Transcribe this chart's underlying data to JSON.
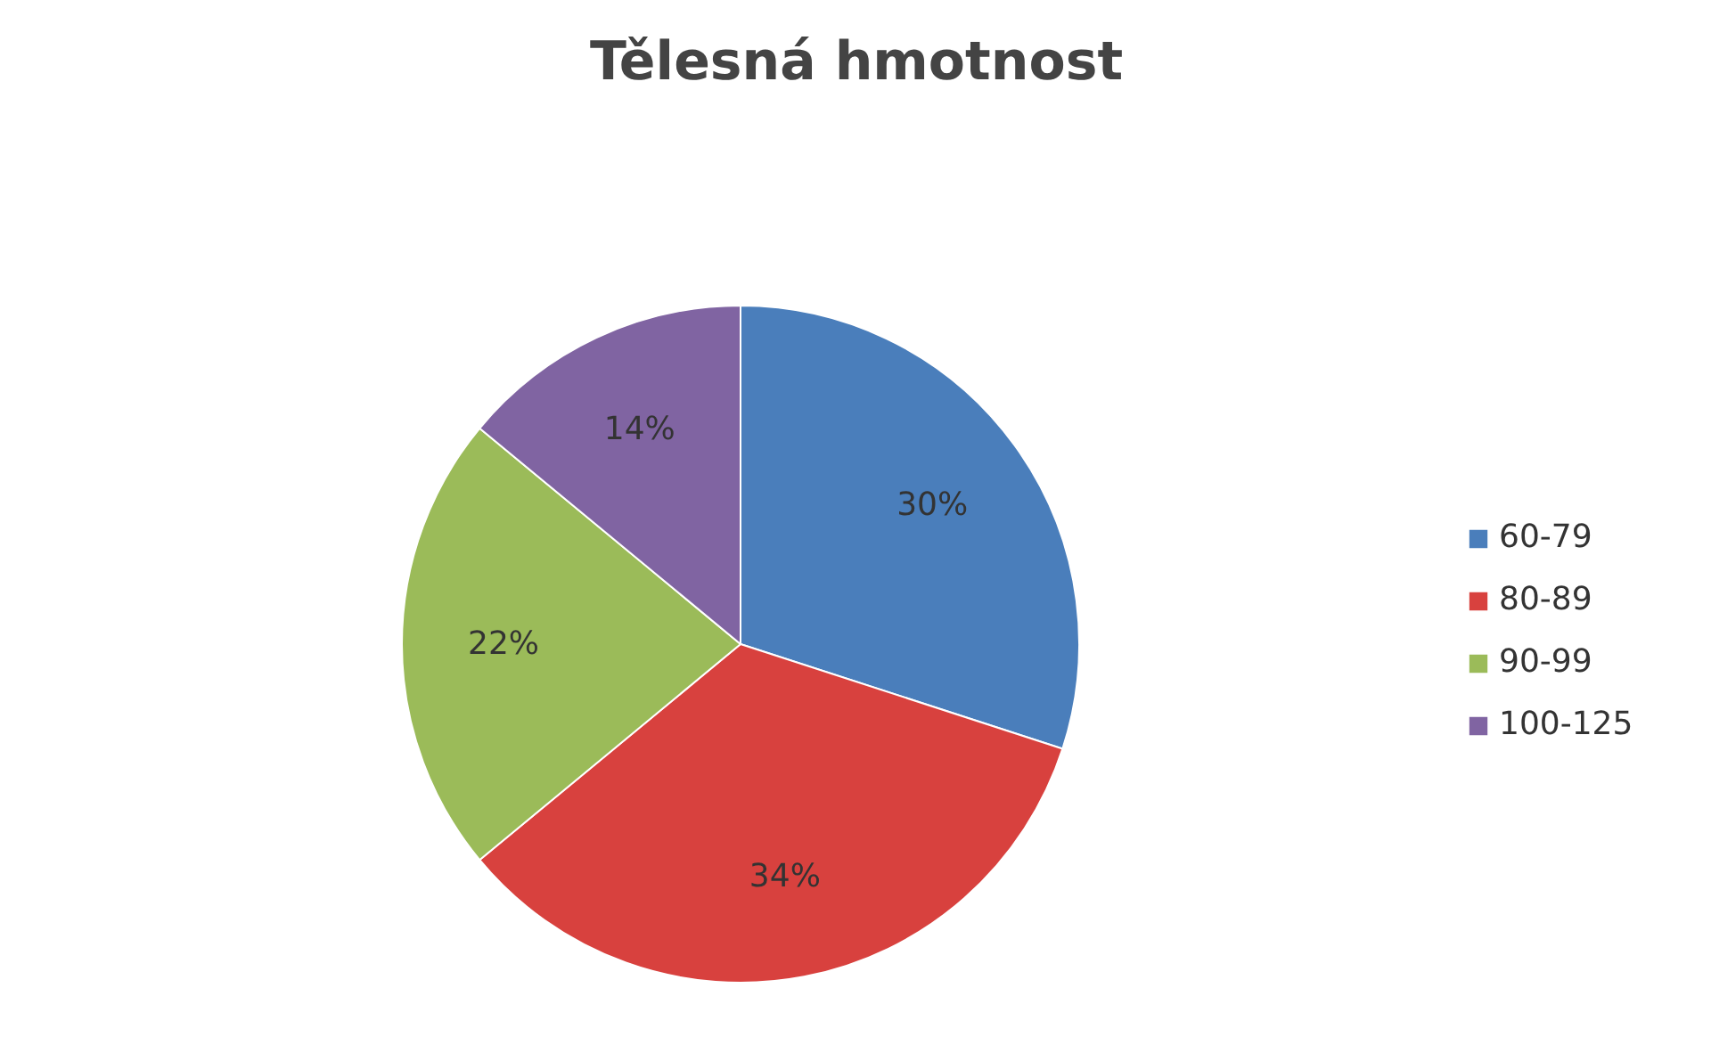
{
  "chart_data": {
    "type": "pie",
    "title": "Tělesná hmotnost",
    "categories": [
      "60-79",
      "80-89",
      "90-99",
      "100-125"
    ],
    "values": [
      30,
      34,
      22,
      14
    ],
    "colors": [
      "#4a7ebb",
      "#d8413e",
      "#9bbb59",
      "#8064a2"
    ],
    "value_labels": [
      "30%",
      "34%",
      "22%",
      "14%"
    ],
    "legend": "right"
  }
}
